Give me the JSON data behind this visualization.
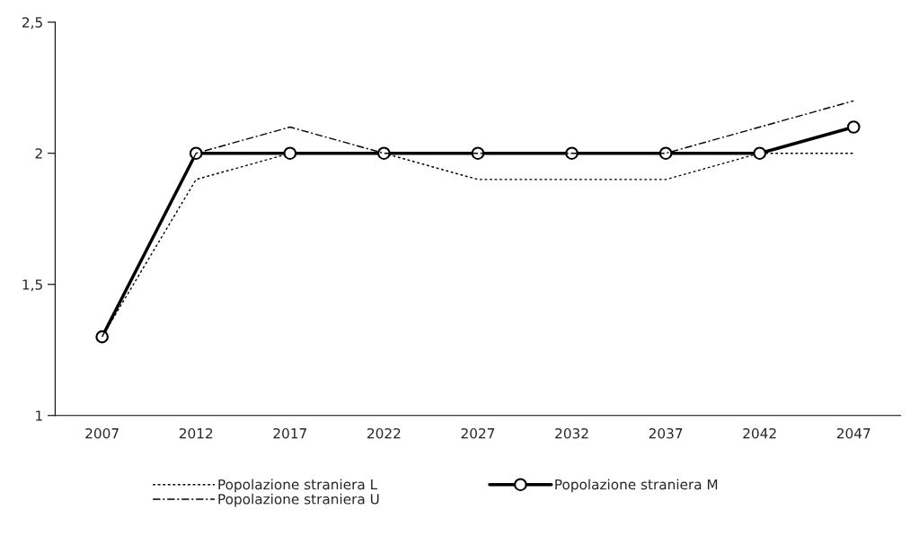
{
  "chart_data": {
    "type": "line",
    "categories": [
      "2007",
      "2012",
      "2017",
      "2022",
      "2027",
      "2032",
      "2037",
      "2042",
      "2047"
    ],
    "ylim": [
      1,
      2.5
    ],
    "yticks": [
      1,
      {
        "value": 1.5,
        "label": "1,5"
      },
      2,
      {
        "value": 2.5,
        "label": "2,5"
      }
    ],
    "grid": false,
    "legend": "bottom",
    "series": [
      {
        "name": "Popolazione straniera L",
        "color": "#000000",
        "line_style": "dotted",
        "marker": "none",
        "values": [
          1.3,
          1.9,
          2.0,
          2.0,
          1.9,
          1.9,
          1.9,
          2.0,
          2.0
        ]
      },
      {
        "name": "Popolazione straniera M",
        "color": "#000000",
        "line_style": "solid",
        "marker": "circle",
        "values": [
          1.3,
          2.0,
          2.0,
          2.0,
          2.0,
          2.0,
          2.0,
          2.0,
          2.1
        ]
      },
      {
        "name": "Popolazione straniera U",
        "color": "#000000",
        "line_style": "dashdot",
        "marker": "none",
        "values": [
          1.3,
          2.0,
          2.1,
          2.0,
          2.0,
          2.0,
          2.0,
          2.1,
          2.2
        ]
      }
    ]
  }
}
